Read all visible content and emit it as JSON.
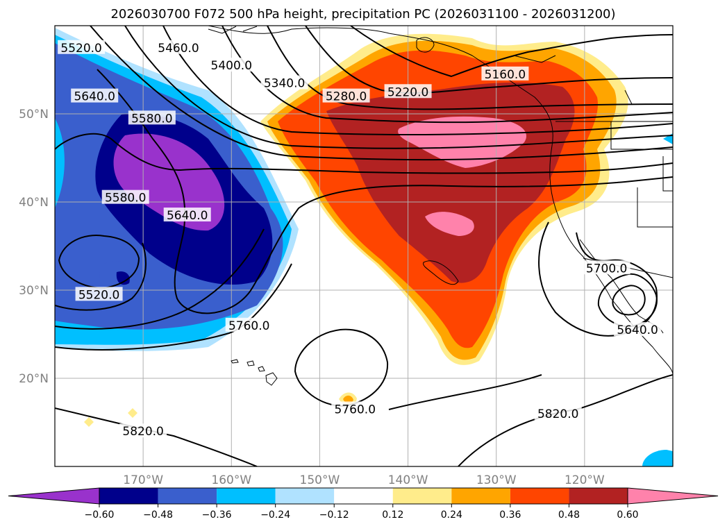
{
  "chart_data": {
    "type": "contour map",
    "title": "2026030700 F072 500 hPa height, precipitation PC (2026031100 - 2026031200)",
    "field_shaded": "precipitation PC",
    "field_contoured": "500 hPa height",
    "lon_range": [
      -180,
      -110
    ],
    "lat_range": [
      10,
      60
    ],
    "lon_ticks": [
      {
        "value": -170,
        "label": "170°W"
      },
      {
        "value": -160,
        "label": "160°W"
      },
      {
        "value": -150,
        "label": "150°W"
      },
      {
        "value": -140,
        "label": "140°W"
      },
      {
        "value": -130,
        "label": "130°W"
      },
      {
        "value": -120,
        "label": "120°W"
      }
    ],
    "lat_ticks": [
      {
        "value": 20,
        "label": "20°N"
      },
      {
        "value": 30,
        "label": "30°N"
      },
      {
        "value": 40,
        "label": "40°N"
      },
      {
        "value": 50,
        "label": "50°N"
      }
    ],
    "colorbar": {
      "levels": [
        -0.6,
        -0.48,
        -0.36,
        -0.24,
        -0.12,
        0.12,
        0.24,
        0.36,
        0.48,
        0.6
      ],
      "tick_labels": [
        "−0.60",
        "−0.48",
        "−0.36",
        "−0.24",
        "−0.12",
        "0.12",
        "0.24",
        "0.36",
        "0.48",
        "0.60"
      ],
      "colors": [
        "#9932cc",
        "#00008b",
        "#3a5fcd",
        "#00bfff",
        "#b0e2ff",
        "#ffffff",
        "#ffec8b",
        "#ffa500",
        "#ff4500",
        "#b22222",
        "#ff82ab"
      ],
      "extend": "both"
    },
    "height_contour_labels": [
      {
        "text": "5520.0",
        "lon": -177,
        "lat": 57.5
      },
      {
        "text": "5460.0",
        "lon": -166,
        "lat": 57.5
      },
      {
        "text": "5400.0",
        "lon": -160,
        "lat": 55.5
      },
      {
        "text": "5340.0",
        "lon": -154,
        "lat": 53.5
      },
      {
        "text": "5280.0",
        "lon": -147,
        "lat": 52
      },
      {
        "text": "5220.0",
        "lon": -140,
        "lat": 52.5
      },
      {
        "text": "5160.0",
        "lon": -129,
        "lat": 54.5
      },
      {
        "text": "5640.0",
        "lon": -175.5,
        "lat": 52
      },
      {
        "text": "5580.0",
        "lon": -169,
        "lat": 49.5
      },
      {
        "text": "5580.0",
        "lon": -172,
        "lat": 40.5
      },
      {
        "text": "5640.0",
        "lon": -165,
        "lat": 38.5
      },
      {
        "text": "5520.0",
        "lon": -175,
        "lat": 29.5
      },
      {
        "text": "5760.0",
        "lon": -158,
        "lat": 26
      },
      {
        "text": "5760.0",
        "lon": -146,
        "lat": 16.5
      },
      {
        "text": "5700.0",
        "lon": -117.5,
        "lat": 32.5
      },
      {
        "text": "5640.0",
        "lon": -114,
        "lat": 25.5
      },
      {
        "text": "5820.0",
        "lon": -170,
        "lat": 14
      },
      {
        "text": "5820.0",
        "lon": -123,
        "lat": 16
      }
    ]
  }
}
